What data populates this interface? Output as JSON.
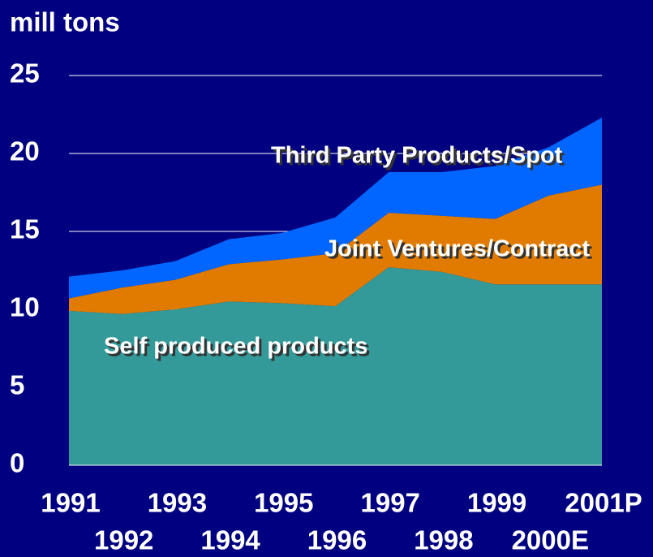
{
  "chart_data": {
    "type": "stacked_area",
    "y_label": "mill tons",
    "categories": [
      "1991",
      "1992",
      "1993",
      "1994",
      "1995",
      "1996",
      "1997",
      "1998",
      "1999",
      "2000E",
      "2001P"
    ],
    "series": [
      {
        "name": "Self produced products",
        "color": "#339999",
        "values": [
          9.9,
          9.7,
          10.0,
          10.5,
          10.4,
          10.2,
          12.7,
          12.4,
          11.6,
          11.6,
          11.6
        ]
      },
      {
        "name": "Joint Ventures/Contract",
        "color": "#e07b00",
        "values": [
          0.8,
          1.7,
          1.9,
          2.4,
          2.8,
          3.4,
          3.5,
          3.6,
          4.2,
          5.7,
          6.4
        ]
      },
      {
        "name": "Third Party Products/Spot",
        "color": "#0066ff",
        "values": [
          1.4,
          1.1,
          1.2,
          1.6,
          1.7,
          2.3,
          2.6,
          2.8,
          3.4,
          3.1,
          4.3
        ]
      }
    ],
    "ylim": [
      0,
      25
    ],
    "yticks": [
      0,
      5,
      10,
      15,
      20,
      25
    ],
    "grid": true
  }
}
